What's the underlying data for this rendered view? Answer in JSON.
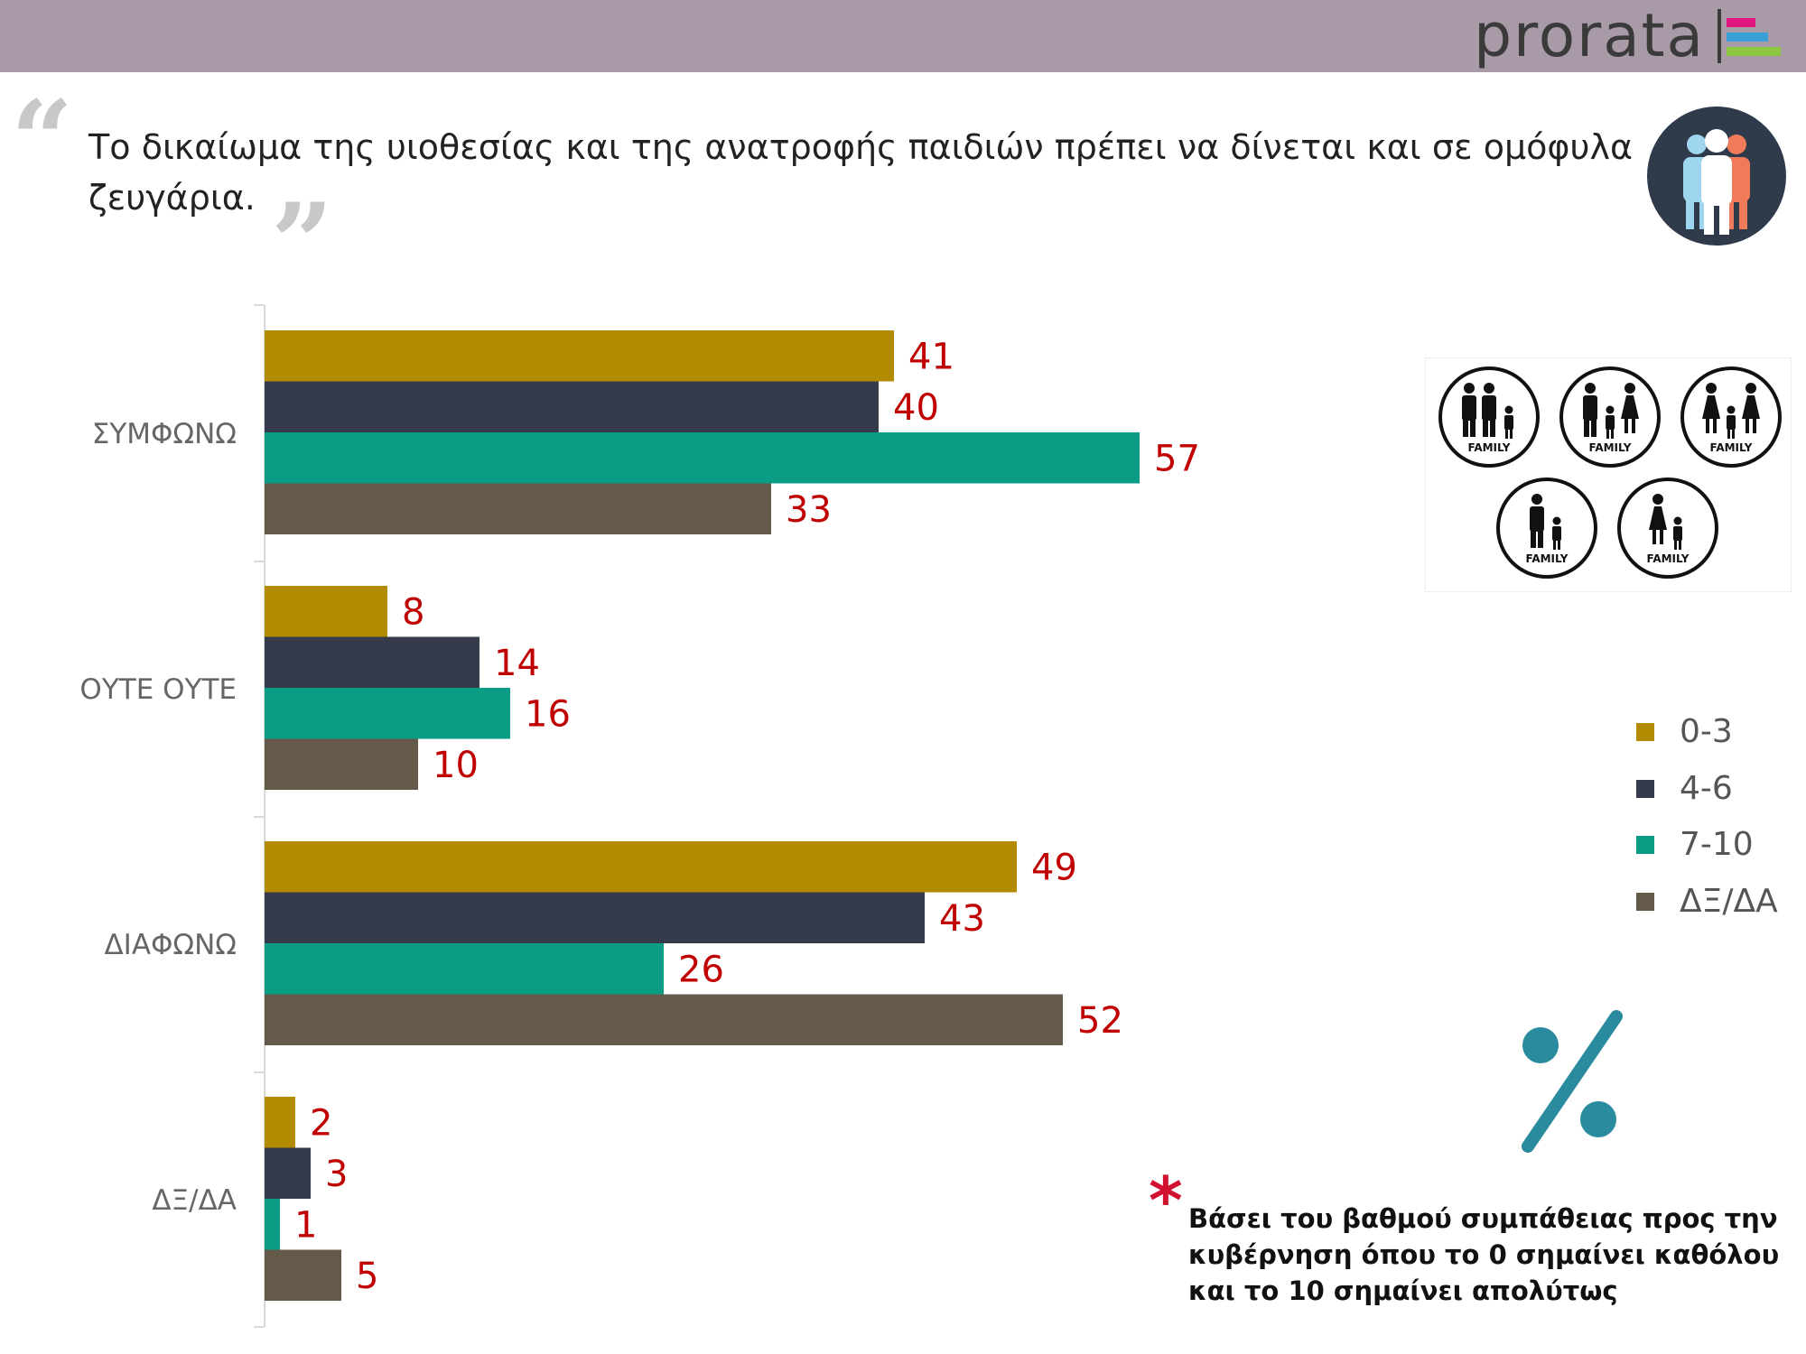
{
  "header": {
    "logo_text": "prorata",
    "logo_colors": [
      "#e0157f",
      "#3aa0d8",
      "#8dc63f"
    ]
  },
  "question": "Το δικαίωμα της υιοθεσίας και της ανατροφής παιδιών πρέπει να δίνεται και σε ομόφυλα ζευγάρια.",
  "quote_open": "“",
  "quote_close": "”",
  "chart_data": {
    "type": "bar",
    "orientation": "horizontal",
    "categories": [
      "ΣΥΜΦΩΝΩ",
      "ΟΥΤΕ ΟΥΤΕ",
      "ΔΙΑΦΩΝΩ",
      "ΔΞ/ΔΑ"
    ],
    "series": [
      {
        "name": "0-3",
        "color": "#b38b00",
        "values": [
          41,
          8,
          49,
          2
        ]
      },
      {
        "name": "4-6",
        "color": "#363b4b",
        "values": [
          40,
          14,
          43,
          3
        ]
      },
      {
        "name": "7-10",
        "color": "#0b9c85",
        "values": [
          57,
          16,
          26,
          1
        ]
      },
      {
        "name": "ΔΞ/ΔΑ",
        "color": "#655a4a",
        "values": [
          33,
          10,
          52,
          5
        ]
      }
    ],
    "xlim": [
      0,
      60
    ],
    "label_color": "#c00000",
    "legend_position": "right",
    "grid": false
  },
  "family_icon_label": "FAMILY",
  "footnote": "Βάσει του βαθμού συμπάθειας προς την κυβέρνηση όπου το 0 σημαίνει καθόλου και το 10 σημαίνει απολύτως",
  "asterisk": "*",
  "icons": {
    "people": "people-group-icon",
    "percent": "percent-icon",
    "families": "family-icons"
  }
}
